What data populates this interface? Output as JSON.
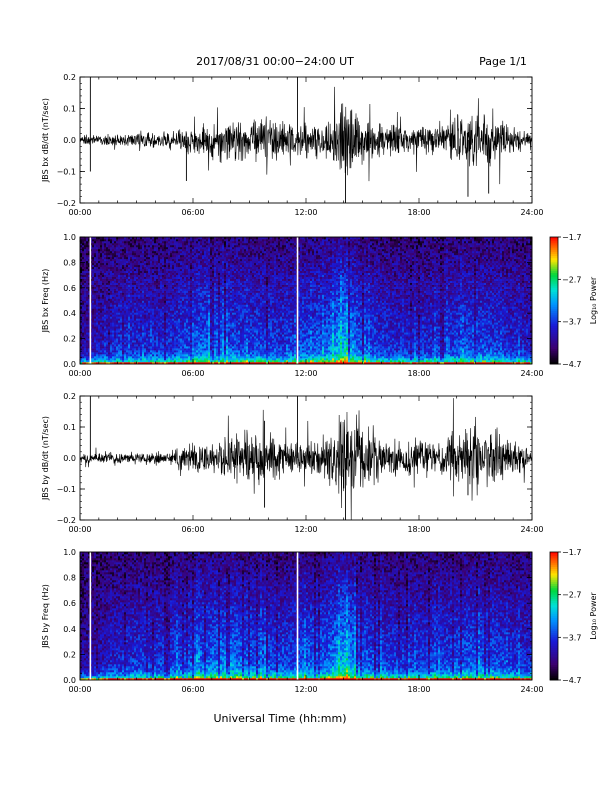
{
  "header": {
    "title": "2017/08/31   00:00−24:00 UT",
    "page": "Page 1/1"
  },
  "xlabel": "Universal Time (hh:mm)",
  "colors": {
    "trace": "#000000",
    "gap": "#ffffff",
    "background": "#ffffff"
  },
  "chart_data": [
    {
      "type": "line",
      "ylabel": "JBS bx dB/dt (nT/sec)",
      "ylim": [
        -0.2,
        0.2
      ],
      "yticks": [
        -0.2,
        -0.1,
        0.0,
        0.1,
        0.2
      ],
      "ytick_labels": [
        "−0.2",
        "−0.1",
        "0.0",
        "0.1",
        "0.2"
      ],
      "xlim": [
        0,
        24
      ],
      "xticks": [
        0,
        6,
        12,
        18,
        24
      ],
      "xtick_labels": [
        "00:00",
        "06:00",
        "12:00",
        "18:00",
        "24:00"
      ],
      "x_hours": [
        0,
        1,
        2,
        3,
        4,
        5,
        6,
        7,
        8,
        9,
        10,
        11,
        12,
        13,
        14,
        15,
        16,
        17,
        18,
        19,
        20,
        21,
        22,
        23,
        24
      ],
      "envelope": [
        0.015,
        0.02,
        0.02,
        0.025,
        0.03,
        0.03,
        0.06,
        0.06,
        0.07,
        0.08,
        0.09,
        0.07,
        0.06,
        0.07,
        0.17,
        0.08,
        0.06,
        0.06,
        0.05,
        0.06,
        0.09,
        0.1,
        0.09,
        0.05,
        0.03
      ],
      "spikes": [
        {
          "x": 0.55,
          "y": 0.22
        },
        {
          "x": 0.55,
          "y": -0.1
        },
        {
          "x": 11.55,
          "y": 0.22
        },
        {
          "x": 5.65,
          "y": -0.13
        },
        {
          "x": 14.1,
          "y": -0.2
        },
        {
          "x": 20.6,
          "y": -0.18
        },
        {
          "x": 21.7,
          "y": -0.17
        }
      ]
    },
    {
      "type": "heatmap",
      "ylabel": "JBS bx Freq (Hz)",
      "ylim": [
        0.0,
        1.0
      ],
      "yticks": [
        0.0,
        0.2,
        0.4,
        0.6,
        0.8,
        1.0
      ],
      "ytick_labels": [
        "0.0",
        "0.2",
        "0.4",
        "0.6",
        "0.8",
        "1.0"
      ],
      "xlim": [
        0,
        24
      ],
      "xticks": [
        0,
        6,
        12,
        18,
        24
      ],
      "xtick_labels": [
        "00:00",
        "06:00",
        "12:00",
        "18:00",
        "24:00"
      ],
      "colorbar": {
        "label": "Log₁₀ Power",
        "range": [
          -4.7,
          -1.7
        ],
        "ticks": [
          -1.7,
          -2.7,
          -3.7,
          -4.7
        ],
        "tick_labels": [
          "−1.7",
          "−2.7",
          "−3.7",
          "−4.7"
        ]
      },
      "activity_hours": [
        0,
        1,
        2,
        3,
        4,
        5,
        6,
        7,
        8,
        9,
        10,
        11,
        12,
        13,
        14,
        15,
        16,
        17,
        18,
        19,
        20,
        21,
        22,
        23,
        24
      ],
      "activity": [
        0.25,
        0.3,
        0.5,
        0.45,
        0.45,
        0.5,
        0.65,
        0.7,
        0.6,
        0.55,
        0.55,
        0.5,
        0.6,
        0.65,
        0.95,
        0.6,
        0.5,
        0.45,
        0.45,
        0.5,
        0.55,
        0.6,
        0.55,
        0.45,
        0.4
      ],
      "data_gaps_hours": [
        0.55,
        11.55
      ]
    },
    {
      "type": "line",
      "ylabel": "JBS by dB/dt (nT/sec)",
      "ylim": [
        -0.2,
        0.2
      ],
      "yticks": [
        -0.2,
        -0.1,
        0.0,
        0.1,
        0.2
      ],
      "ytick_labels": [
        "−0.2",
        "−0.1",
        "0.0",
        "0.1",
        "0.2"
      ],
      "xlim": [
        0,
        24
      ],
      "xticks": [
        0,
        6,
        12,
        18,
        24
      ],
      "xtick_labels": [
        "00:00",
        "06:00",
        "12:00",
        "18:00",
        "24:00"
      ],
      "x_hours": [
        0,
        1,
        2,
        3,
        4,
        5,
        6,
        7,
        8,
        9,
        10,
        11,
        12,
        13,
        14,
        15,
        16,
        17,
        18,
        19,
        20,
        21,
        22,
        23,
        24
      ],
      "envelope": [
        0.015,
        0.02,
        0.02,
        0.02,
        0.025,
        0.03,
        0.06,
        0.06,
        0.08,
        0.1,
        0.09,
        0.07,
        0.06,
        0.07,
        0.2,
        0.1,
        0.06,
        0.06,
        0.06,
        0.06,
        0.1,
        0.11,
        0.1,
        0.07,
        0.03
      ],
      "spikes": [
        {
          "x": 0.55,
          "y": 0.22
        },
        {
          "x": 11.55,
          "y": 0.22
        },
        {
          "x": 9.8,
          "y": 0.12
        },
        {
          "x": 14.1,
          "y": -0.2
        },
        {
          "x": 9.8,
          "y": -0.16
        },
        {
          "x": 20.6,
          "y": -0.12
        }
      ]
    },
    {
      "type": "heatmap",
      "ylabel": "JBS by Freq (Hz)",
      "ylim": [
        0.0,
        1.0
      ],
      "yticks": [
        0.0,
        0.2,
        0.4,
        0.6,
        0.8,
        1.0
      ],
      "ytick_labels": [
        "0.0",
        "0.2",
        "0.4",
        "0.6",
        "0.8",
        "1.0"
      ],
      "xlim": [
        0,
        24
      ],
      "xticks": [
        0,
        6,
        12,
        18,
        24
      ],
      "xtick_labels": [
        "00:00",
        "06:00",
        "12:00",
        "18:00",
        "24:00"
      ],
      "colorbar": {
        "label": "Log₁₀ Power",
        "range": [
          -4.7,
          -1.7
        ],
        "ticks": [
          -1.7,
          -2.7,
          -3.7,
          -4.7
        ],
        "tick_labels": [
          "−1.7",
          "−2.7",
          "−3.7",
          "−4.7"
        ]
      },
      "activity_hours": [
        0,
        1,
        2,
        3,
        4,
        5,
        6,
        7,
        8,
        9,
        10,
        11,
        12,
        13,
        14,
        15,
        16,
        17,
        18,
        19,
        20,
        21,
        22,
        23,
        24
      ],
      "activity": [
        0.25,
        0.3,
        0.45,
        0.5,
        0.5,
        0.55,
        0.65,
        0.7,
        0.75,
        0.65,
        0.6,
        0.55,
        0.65,
        0.65,
        0.95,
        0.65,
        0.55,
        0.5,
        0.5,
        0.55,
        0.6,
        0.65,
        0.6,
        0.5,
        0.45
      ],
      "data_gaps_hours": [
        0.55,
        11.55
      ]
    }
  ]
}
